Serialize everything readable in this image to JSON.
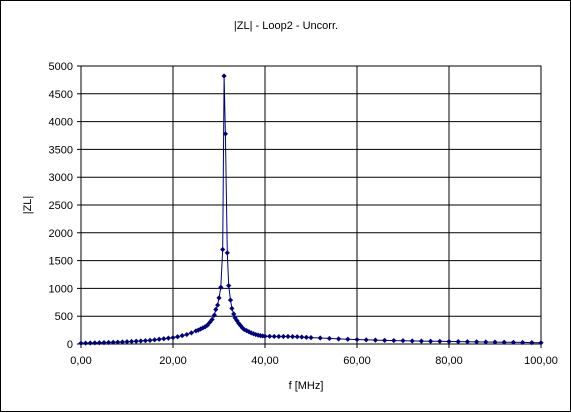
{
  "chart_data": {
    "type": "line",
    "title": "|ZL| - Loop2 - Uncorr.",
    "xlabel": "f [MHz]",
    "ylabel": "|ZL|",
    "xlim": [
      0,
      100
    ],
    "ylim": [
      0,
      5000
    ],
    "x_ticks": [
      "0,00",
      "20,00",
      "40,00",
      "60,00",
      "80,00",
      "100,00"
    ],
    "y_ticks": [
      "0",
      "500",
      "1000",
      "1500",
      "2000",
      "2500",
      "3000",
      "3500",
      "4000",
      "4500",
      "5000"
    ],
    "grid": {
      "x": true,
      "y": true
    },
    "colors": {
      "series": "#00007f",
      "grid": "#000000",
      "plot_bg": "#ffffff"
    },
    "marker": "diamond",
    "series": [
      {
        "x": [
          0,
          1,
          2,
          3,
          4,
          5,
          6,
          7,
          8,
          9,
          10,
          11,
          12,
          13,
          14,
          15,
          16,
          17,
          18,
          19,
          20,
          21,
          22,
          23,
          24,
          25,
          25.5,
          26,
          26.5,
          27,
          27.5,
          28,
          28.5,
          29,
          29.3,
          29.7,
          30,
          30.4,
          30.8,
          31.1,
          31.4,
          31.8,
          32.1,
          32.5,
          32.8,
          33.2,
          33.5,
          33.9,
          34.3,
          34.7,
          35.1,
          35.5,
          36,
          36.5,
          37,
          37.5,
          38,
          38.5,
          39,
          39.5,
          40,
          41,
          42,
          43,
          44,
          45,
          46,
          47,
          48,
          49,
          50,
          52,
          54,
          56,
          58,
          60,
          62,
          64,
          66,
          68,
          70,
          72,
          74,
          76,
          78,
          80,
          82,
          84,
          86,
          88,
          90,
          92,
          94,
          96,
          98,
          100
        ],
        "y": [
          15,
          15,
          18,
          20,
          22,
          25,
          28,
          30,
          33,
          36,
          40,
          45,
          50,
          55,
          60,
          65,
          75,
          85,
          95,
          105,
          115,
          130,
          150,
          170,
          200,
          235,
          250,
          270,
          290,
          310,
          340,
          390,
          440,
          520,
          620,
          700,
          830,
          1020,
          1700,
          4820,
          3780,
          1640,
          1050,
          790,
          640,
          540,
          470,
          420,
          370,
          330,
          290,
          260,
          240,
          220,
          200,
          185,
          170,
          160,
          150,
          145,
          140,
          138,
          136,
          135,
          135,
          135,
          133,
          130,
          125,
          120,
          115,
          108,
          100,
          92,
          85,
          80,
          75,
          70,
          65,
          62,
          60,
          55,
          52,
          50,
          48,
          45,
          43,
          40,
          38,
          36,
          34,
          32,
          30,
          28,
          25,
          22
        ]
      }
    ]
  }
}
